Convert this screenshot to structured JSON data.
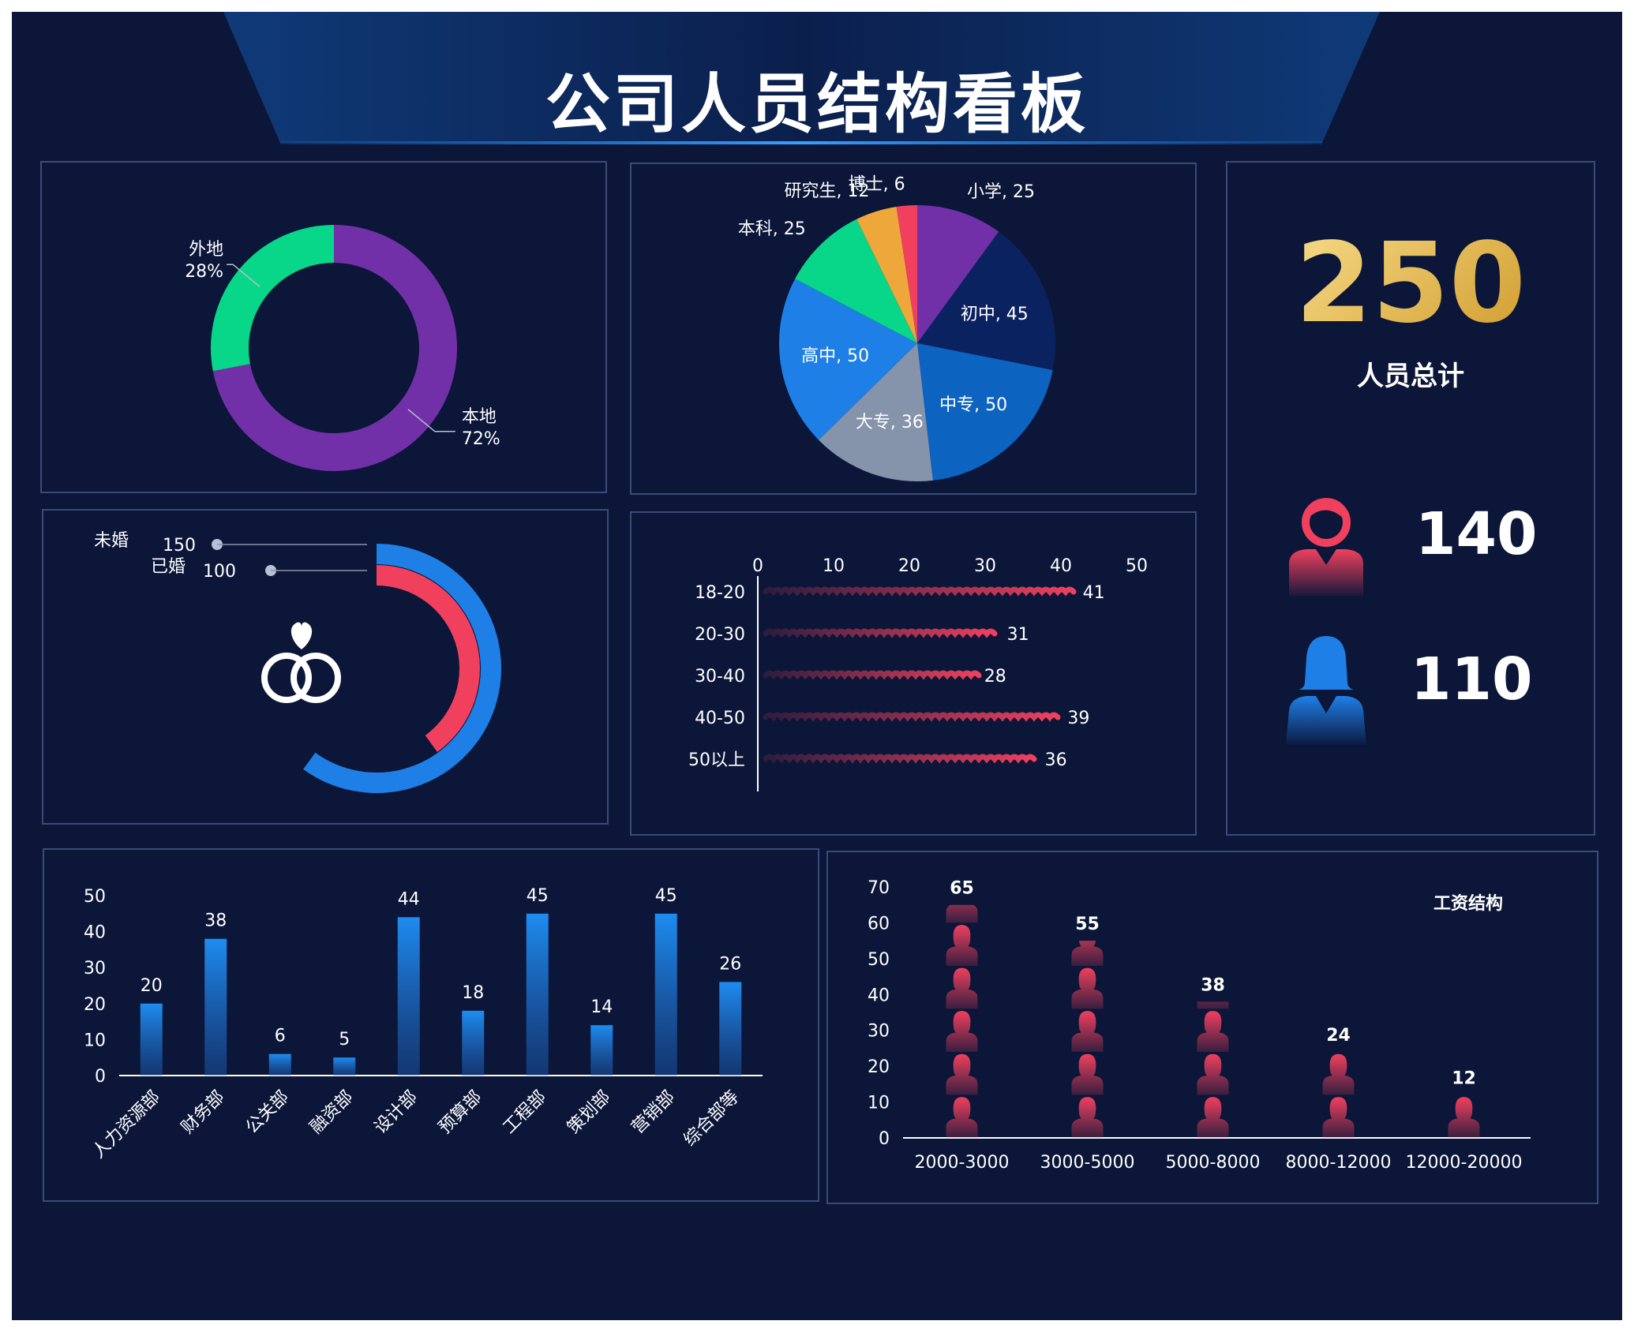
{
  "title": "公司人员结构看板",
  "colors": {
    "background": "#0b1638",
    "panel_border": "#3b4a78",
    "purple": "#7130a8",
    "green": "#08d688",
    "blue": "#1e7fe6",
    "red": "#f0405e",
    "gold": "#e8b43a"
  },
  "chart_data": [
    {
      "type": "pie",
      "name": "origin",
      "donut": true,
      "slices": [
        {
          "label": "本地",
          "percent": "72%",
          "value": 72,
          "color": "#7130a8"
        },
        {
          "label": "外地",
          "percent": "28%",
          "value": 28,
          "color": "#08d688"
        }
      ]
    },
    {
      "type": "pie",
      "name": "education",
      "slices": [
        {
          "label": "小学",
          "value": 25,
          "color": "#7130a8"
        },
        {
          "label": "初中",
          "value": 45,
          "color": "#0a2360"
        },
        {
          "label": "中专",
          "value": 50,
          "color": "#0d63c0"
        },
        {
          "label": "大专",
          "value": 36,
          "color": "#8593ab"
        },
        {
          "label": "高中",
          "value": 50,
          "color": "#1e7fe6"
        },
        {
          "label": "本科",
          "value": 25,
          "color": "#08d688"
        },
        {
          "label": "研究生",
          "value": 12,
          "color": "#eea73a"
        },
        {
          "label": "博士",
          "value": 6,
          "color": "#f0405e"
        }
      ]
    },
    {
      "type": "bar",
      "name": "marital",
      "series": [
        {
          "name": "未婚",
          "value": 150,
          "color": "#1e7fe6"
        },
        {
          "name": "已婚",
          "value": 100,
          "color": "#f0405e"
        }
      ],
      "max": 250
    },
    {
      "type": "bar",
      "name": "age",
      "orientation": "horizontal",
      "categories": [
        "18-20",
        "20-30",
        "30-40",
        "40-50",
        "50以上"
      ],
      "values": [
        41,
        31,
        28,
        39,
        36
      ],
      "xticks": [
        "0",
        "10",
        "20",
        "30",
        "40",
        "50"
      ],
      "xlim": [
        0,
        50
      ]
    },
    {
      "type": "bar",
      "name": "department",
      "categories": [
        "人力资源部",
        "财务部",
        "公关部",
        "融资部",
        "设计部",
        "预算部",
        "工程部",
        "策划部",
        "营销部",
        "综合部等"
      ],
      "values": [
        20,
        38,
        6,
        5,
        44,
        18,
        45,
        14,
        45,
        26
      ],
      "yticks": [
        "0",
        "10",
        "20",
        "30",
        "40",
        "50"
      ],
      "ylim": [
        0,
        50
      ]
    },
    {
      "type": "bar",
      "name": "salary",
      "title": "工资结构",
      "categories": [
        "2000-3000",
        "3000-5000",
        "5000-8000",
        "8000-12000",
        "12000-20000"
      ],
      "values": [
        65,
        55,
        38,
        24,
        12
      ],
      "yticks": [
        "0",
        "10",
        "20",
        "30",
        "40",
        "50",
        "60",
        "70"
      ],
      "ylim": [
        0,
        70
      ]
    }
  ],
  "summary": {
    "total": "250",
    "total_label": "人员总计",
    "male": "140",
    "female": "110"
  }
}
